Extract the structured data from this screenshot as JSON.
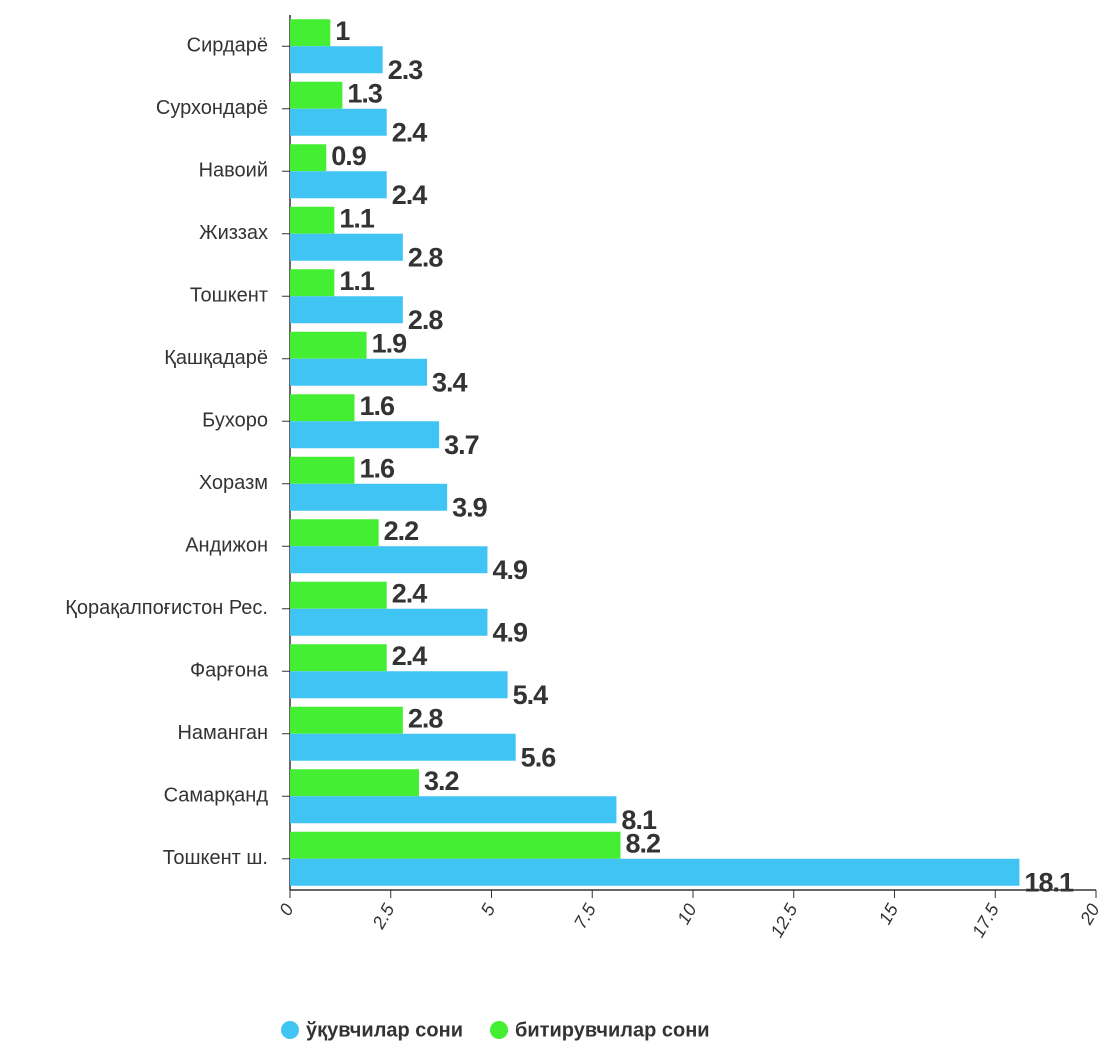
{
  "chart_data": {
    "type": "bar",
    "orientation": "horizontal",
    "categories": [
      "Сирдарё",
      "Сурхондарё",
      "Навоий",
      "Жиззах",
      "Тошкент",
      "Қашқадарё",
      "Бухоро",
      "Хоразм",
      "Андижон",
      "Қорақалпоғистон Рес.",
      "Фарғона",
      "Наманган",
      "Самарқанд",
      "Тошкент ш."
    ],
    "series": [
      {
        "name": "ўқувчилар сони",
        "color": "#40c4f4",
        "values": [
          2.3,
          2.4,
          2.4,
          2.8,
          2.8,
          3.4,
          3.7,
          3.9,
          4.9,
          4.9,
          5.4,
          5.6,
          8.1,
          18.1
        ]
      },
      {
        "name": "битирувчилар сони",
        "color": "#44ee33",
        "values": [
          1,
          1.3,
          0.9,
          1.1,
          1.1,
          1.9,
          1.6,
          1.6,
          2.2,
          2.4,
          2.4,
          2.8,
          3.2,
          8.2
        ]
      }
    ],
    "xlim": [
      0,
      20
    ],
    "xticks": [
      0,
      2.5,
      5,
      7.5,
      10,
      12.5,
      15,
      17.5,
      20
    ],
    "legend": "bottom"
  }
}
